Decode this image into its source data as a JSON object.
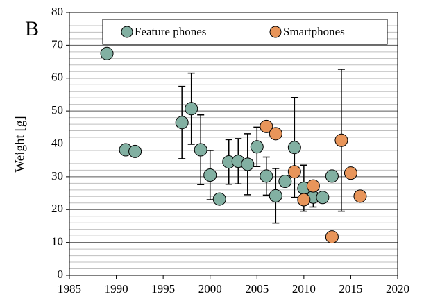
{
  "chart_data": {
    "type": "scatter",
    "panel_label": "B",
    "ylabel": "Weight [g]",
    "xlim": [
      1985,
      2020
    ],
    "xticks": [
      1985,
      1990,
      1995,
      2000,
      2005,
      2010,
      2015,
      2020
    ],
    "ylim": [
      0,
      80
    ],
    "yticks": [
      0,
      10,
      20,
      30,
      40,
      50,
      60,
      70,
      80
    ],
    "minor_yticks": [
      2,
      4,
      6,
      8,
      12,
      14,
      16,
      18,
      22,
      24,
      26,
      28,
      32,
      34,
      36,
      38,
      42,
      44,
      46,
      48,
      52,
      54,
      56,
      58,
      62,
      64,
      66,
      68,
      72,
      74,
      76,
      78
    ],
    "grid": true,
    "legend": "top",
    "series": [
      {
        "name": "Feature phones",
        "color": "#82b0a2",
        "x": [
          1989,
          1991,
          1992,
          1997,
          1998,
          1999,
          2000,
          2001,
          2002,
          2003,
          2004,
          2005,
          2006,
          2007,
          2008,
          2009,
          2010,
          2011,
          2012,
          2013
        ],
        "values": [
          67.5,
          38.2,
          37.7,
          46.5,
          50.7,
          38.2,
          30.5,
          23.2,
          34.5,
          34.7,
          33.8,
          39.1,
          30.2,
          24.2,
          28.6,
          38.9,
          26.5,
          23.8,
          23.7,
          30.2
        ],
        "errors": [
          null,
          null,
          null,
          11,
          10.8,
          10.6,
          7.5,
          null,
          6.8,
          6.9,
          9.3,
          6,
          5.8,
          8.3,
          null,
          15.2,
          7,
          3,
          null,
          null
        ]
      },
      {
        "name": "Smartphones",
        "color": "#e8955a",
        "x": [
          2006,
          2007,
          2009,
          2010,
          2011,
          2013,
          2014,
          2015,
          2016
        ],
        "values": [
          45.3,
          43.1,
          31.5,
          23.0,
          27.2,
          11.7,
          41.1,
          31.1,
          24.1
        ],
        "errors": [
          1.5,
          null,
          null,
          null,
          null,
          null,
          21.6,
          null,
          null
        ]
      }
    ]
  }
}
